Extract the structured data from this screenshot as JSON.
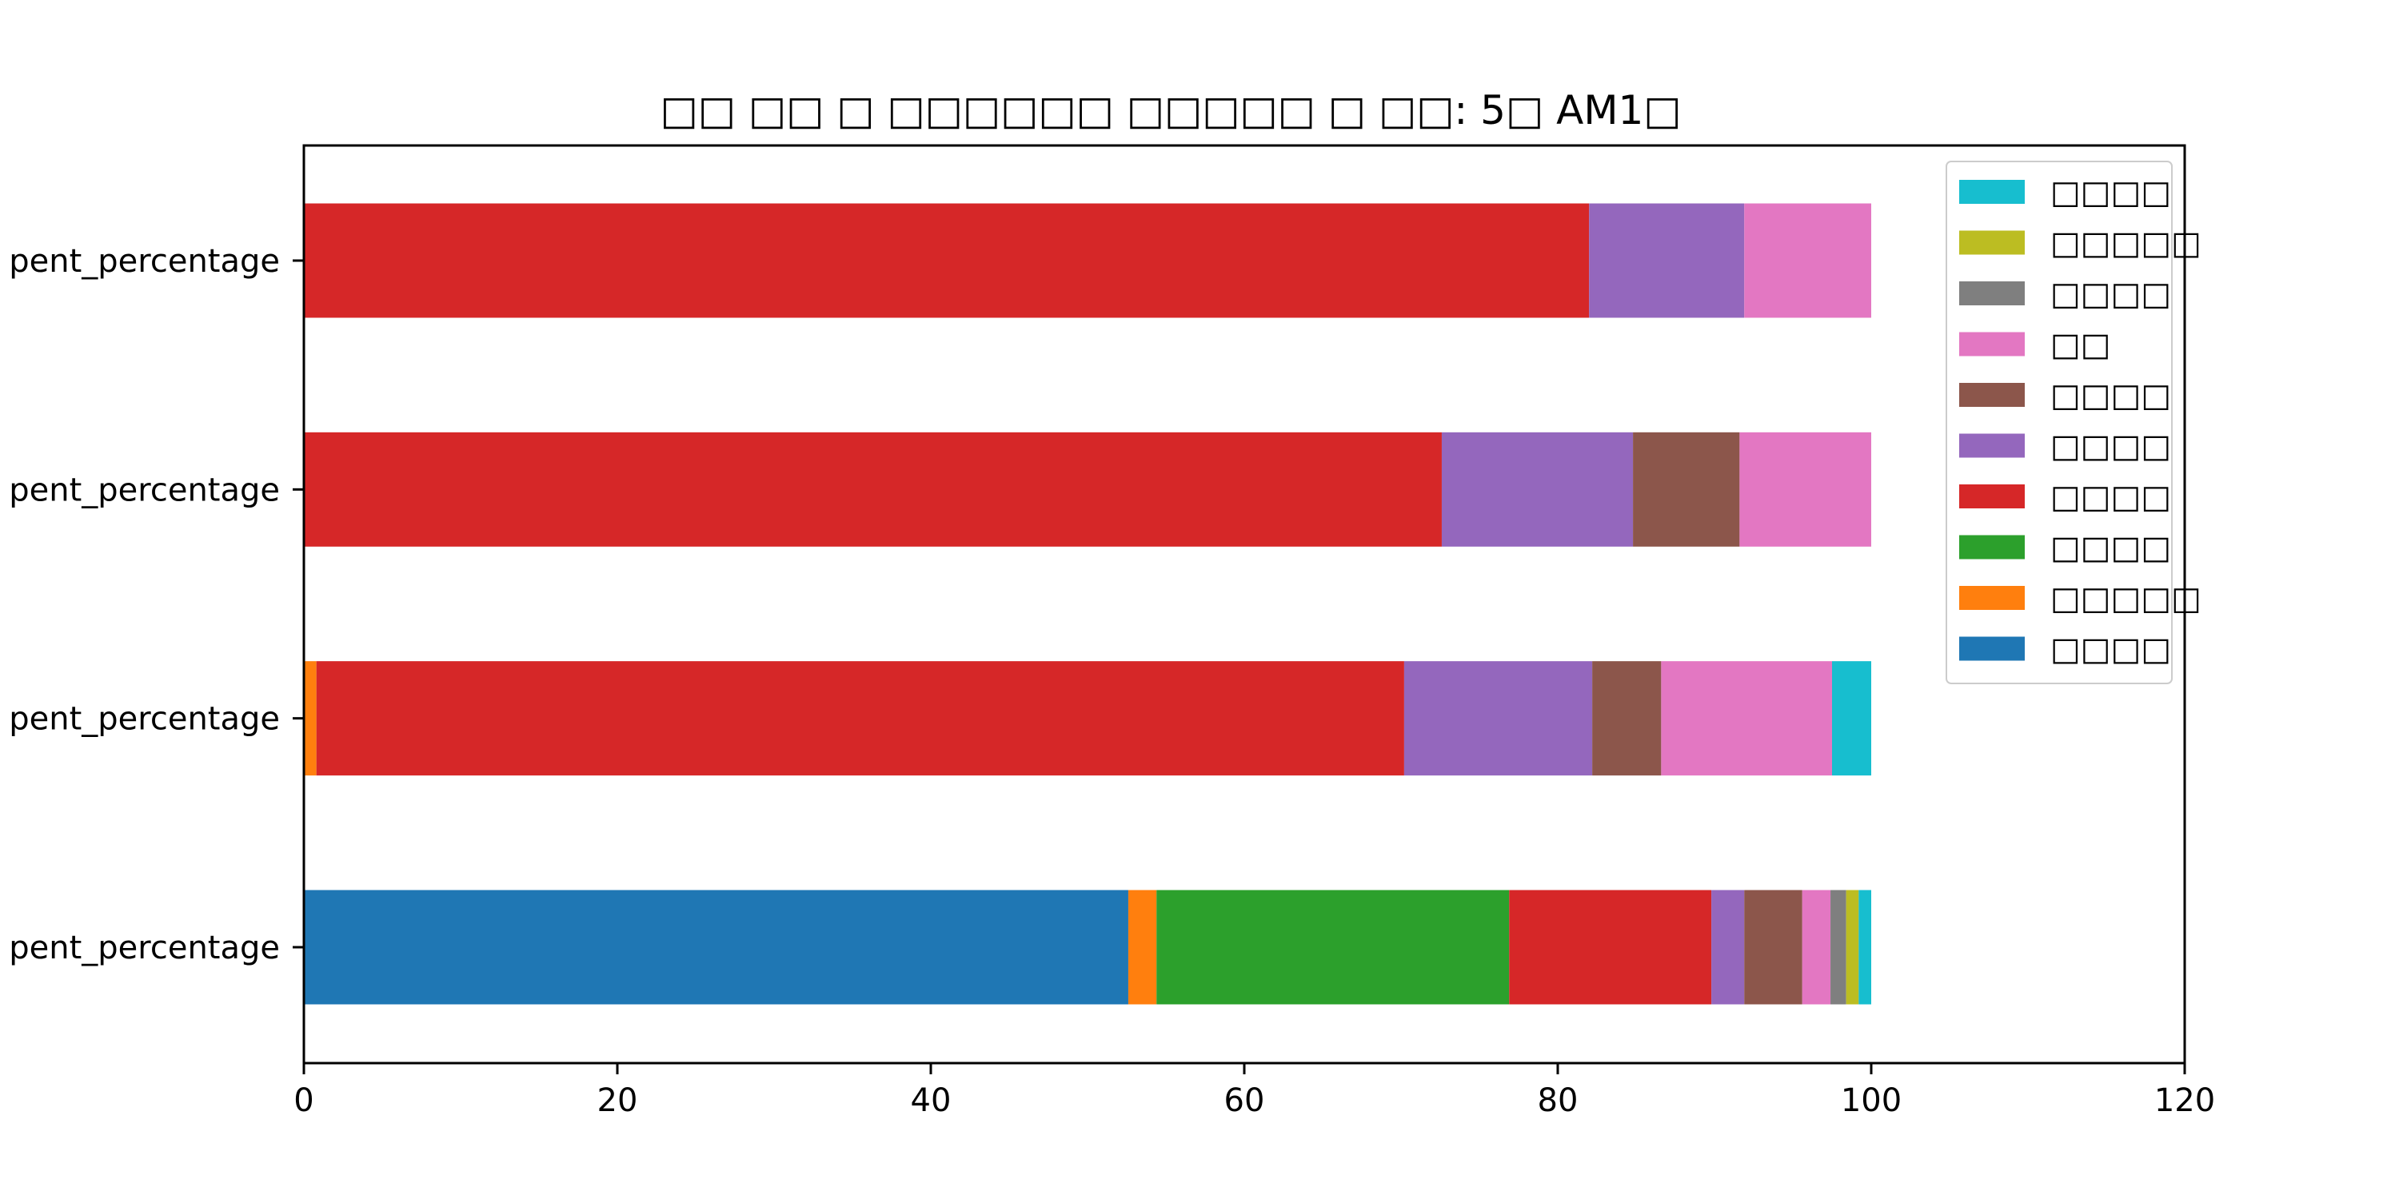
{
  "chart_data": {
    "type": "bar",
    "orientation": "horizontal",
    "stacked": true,
    "title": "□□ □□ □ □□□□□□ □□□□□ □ □□: 5□ AM1□",
    "xlabel": "",
    "ylabel": "",
    "xlim": [
      0,
      120
    ],
    "x_ticks": [
      0,
      20,
      40,
      60,
      80,
      100,
      120
    ],
    "categories": [
      "pent_percentage",
      "pent_percentage",
      "pent_percentage",
      "pent_percentage"
    ],
    "series": [
      {
        "name": "□□□□",
        "color": "#1f77b4",
        "values": [
          52.6,
          0,
          0,
          0
        ]
      },
      {
        "name": "□□□□□",
        "color": "#ff7f0e",
        "values": [
          1.8,
          0.8,
          0,
          0
        ]
      },
      {
        "name": "□□□□",
        "color": "#2ca02c",
        "values": [
          22.5,
          0,
          0,
          0
        ]
      },
      {
        "name": "□□□□",
        "color": "#d62728",
        "values": [
          12.9,
          69.4,
          72.6,
          82.0
        ]
      },
      {
        "name": "□□□□",
        "color": "#9467bd",
        "values": [
          2.1,
          12.0,
          12.2,
          9.9
        ]
      },
      {
        "name": "□□□□",
        "color": "#8c564b",
        "values": [
          3.7,
          4.4,
          6.8,
          0
        ]
      },
      {
        "name": "□□",
        "color": "#e377c2",
        "values": [
          1.8,
          10.9,
          8.4,
          8.1
        ]
      },
      {
        "name": "□□□□",
        "color": "#7f7f7f",
        "values": [
          1.0,
          0,
          0,
          0
        ]
      },
      {
        "name": "□□□□□",
        "color": "#bcbd22",
        "values": [
          0.8,
          0,
          0,
          0
        ]
      },
      {
        "name": "□□□□",
        "color": "#17becf",
        "values": [
          0.8,
          2.5,
          0,
          0
        ]
      }
    ],
    "grid": false,
    "legend_position": "top-right"
  }
}
